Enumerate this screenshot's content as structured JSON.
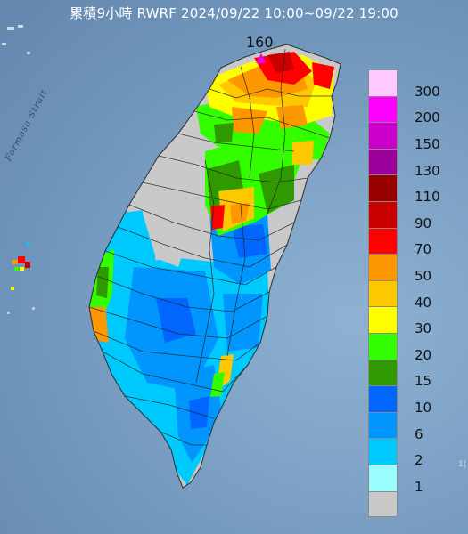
{
  "title": "累積9小時 RWRF 2024/09/22 10:00~09/22 19:00",
  "strait_label": "Formosa Strait",
  "edge_text": "1(",
  "max_value": "160",
  "max_marker_color": "#ee00ee",
  "legend": {
    "boxes": [
      {
        "label": "300",
        "color": "#fec9fe"
      },
      {
        "label": "200",
        "color": "#fe00fe"
      },
      {
        "label": "150",
        "color": "#cb00cb"
      },
      {
        "label": "130",
        "color": "#9a009a"
      },
      {
        "label": "110",
        "color": "#980000"
      },
      {
        "label": "90",
        "color": "#c90000"
      },
      {
        "label": "70",
        "color": "#fe0000"
      },
      {
        "label": "50",
        "color": "#fe9800"
      },
      {
        "label": "40",
        "color": "#fec800"
      },
      {
        "label": "30",
        "color": "#fefe00"
      },
      {
        "label": "20",
        "color": "#32fe00"
      },
      {
        "label": "15",
        "color": "#2f9a00"
      },
      {
        "label": "10",
        "color": "#0066fe"
      },
      {
        "label": "6",
        "color": "#0096fe"
      },
      {
        "label": "2",
        "color": "#00c9fe"
      },
      {
        "label": "1",
        "color": "#9afefe"
      },
      {
        "label": "",
        "color": "#c9c9c9"
      }
    ]
  }
}
